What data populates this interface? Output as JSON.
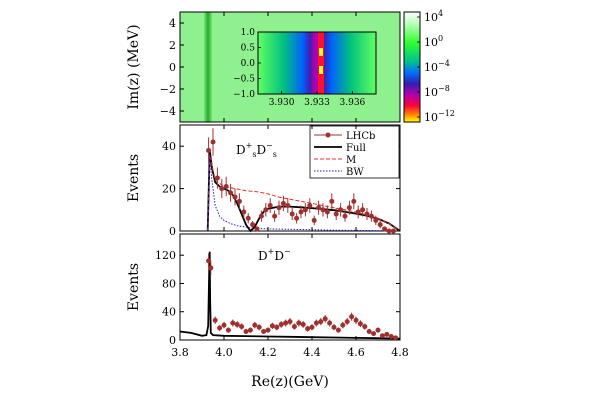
{
  "chart_data": [
    {
      "type": "heatmap",
      "panel": "top",
      "ylabel": "Im(z) (MeV)",
      "ylim": [
        -5,
        5
      ],
      "yticks": [
        "4",
        "2",
        "0",
        "−2",
        "−4"
      ],
      "xlim": [
        3.8,
        4.8
      ],
      "colorbar": {
        "scale": "log",
        "ticks": [
          {
            "base": "10",
            "exp": "4"
          },
          {
            "base": "10",
            "exp": "0"
          },
          {
            "base": "10",
            "exp": "−4"
          },
          {
            "base": "10",
            "exp": "−8"
          },
          {
            "base": "10",
            "exp": "−12"
          }
        ]
      },
      "inset": {
        "xlim": [
          3.928,
          3.938
        ],
        "ylim": [
          -1.0,
          1.0
        ],
        "xticks": [
          "3.930",
          "3.933",
          "3.936"
        ],
        "yticks": [
          "1.0",
          "0.5",
          "0.0",
          "−0.5",
          "−1.0"
        ]
      }
    },
    {
      "type": "line",
      "panel": "middle",
      "annotation": "DsDs",
      "ylabel": "Events",
      "ylim": [
        0,
        50
      ],
      "yticks": [
        "40",
        "20",
        "0"
      ],
      "xlim": [
        3.8,
        4.8
      ],
      "legend": {
        "placement": "top-right",
        "entries": [
          "LHCb",
          "Full",
          "M",
          "BW"
        ]
      },
      "data_series": {
        "name": "LHCb",
        "x": [
          3.93,
          3.95,
          3.97,
          3.99,
          4.01,
          4.03,
          4.05,
          4.07,
          4.09,
          4.11,
          4.13,
          4.15,
          4.17,
          4.19,
          4.21,
          4.23,
          4.25,
          4.27,
          4.29,
          4.31,
          4.33,
          4.35,
          4.37,
          4.39,
          4.41,
          4.43,
          4.45,
          4.47,
          4.49,
          4.51,
          4.53,
          4.55,
          4.57,
          4.59,
          4.61,
          4.63,
          4.65,
          4.67,
          4.69,
          4.71,
          4.73,
          4.75,
          4.77
        ],
        "y": [
          38,
          42,
          25,
          20,
          21,
          18,
          16,
          14,
          9,
          6,
          3,
          1,
          7,
          10,
          12,
          7,
          11,
          13,
          12,
          8,
          6,
          9,
          10,
          12,
          5,
          11,
          10,
          9,
          14,
          8,
          10,
          7,
          11,
          14,
          9,
          10,
          8,
          7,
          5,
          3,
          1,
          0,
          0
        ]
      },
      "curves": [
        {
          "name": "Full",
          "x": [
            3.926,
            3.935,
            3.945,
            3.96,
            3.98,
            4.0,
            4.02,
            4.04,
            4.06,
            4.08,
            4.1,
            4.12,
            4.14,
            4.16,
            4.18,
            4.2,
            4.25,
            4.3,
            4.35,
            4.4,
            4.45,
            4.5,
            4.55,
            4.6,
            4.65,
            4.7,
            4.75,
            4.8
          ],
          "y": [
            0,
            38,
            30,
            23,
            21,
            20,
            19,
            17,
            13,
            8,
            3,
            0,
            2,
            6,
            9,
            10.5,
            11.5,
            11.5,
            11.2,
            10.8,
            10.3,
            9.8,
            9,
            8.2,
            7.2,
            5.8,
            3.6,
            0
          ]
        },
        {
          "name": "M",
          "x": [
            3.926,
            3.935,
            3.96,
            4.0,
            4.05,
            4.1,
            4.15,
            4.2,
            4.25,
            4.3,
            4.35,
            4.4,
            4.45,
            4.5,
            4.55,
            4.6,
            4.65,
            4.7,
            4.75,
            4.8
          ],
          "y": [
            0,
            36,
            24,
            21,
            20,
            19,
            18.5,
            17.5,
            16,
            15,
            14,
            13,
            12,
            11,
            10,
            9,
            7.5,
            6,
            3.5,
            0
          ]
        },
        {
          "name": "BW",
          "x": [
            3.926,
            3.935,
            3.945,
            3.96,
            3.98,
            4.0,
            4.03,
            4.06,
            4.09,
            4.12,
            4.15,
            4.2,
            4.3,
            4.4,
            4.5,
            4.6,
            4.7,
            4.8
          ],
          "y": [
            0,
            36,
            24,
            12,
            7,
            5,
            3.5,
            2.5,
            2,
            1.5,
            1.2,
            1,
            0.8,
            0.6,
            0.4,
            0.3,
            0.2,
            0
          ]
        }
      ]
    },
    {
      "type": "line",
      "panel": "bottom",
      "annotation": "DD",
      "ylabel": "Events",
      "ylim": [
        0,
        150
      ],
      "yticks": [
        "120",
        "80",
        "40",
        "0"
      ],
      "xlim": [
        3.8,
        4.8
      ],
      "xlabel": "Re(z)(GeV)",
      "xticks": [
        "3.8",
        "4.0",
        "4.2",
        "4.4",
        "4.6",
        "4.8"
      ],
      "data_series": {
        "name": "LHCb",
        "x": [
          3.93,
          3.94,
          3.96,
          3.98,
          4.0,
          4.02,
          4.04,
          4.06,
          4.08,
          4.1,
          4.12,
          4.14,
          4.16,
          4.18,
          4.2,
          4.22,
          4.24,
          4.26,
          4.28,
          4.3,
          4.32,
          4.34,
          4.36,
          4.38,
          4.4,
          4.42,
          4.44,
          4.46,
          4.48,
          4.5,
          4.52,
          4.54,
          4.56,
          4.58,
          4.6,
          4.62,
          4.64,
          4.66,
          4.68,
          4.7,
          4.72,
          4.74,
          4.76,
          4.78
        ],
        "y": [
          112,
          102,
          28,
          17,
          21,
          14,
          24,
          22,
          19,
          12,
          14,
          21,
          18,
          12,
          14,
          20,
          18,
          22,
          24,
          26,
          19,
          24,
          22,
          16,
          18,
          24,
          26,
          30,
          24,
          18,
          14,
          21,
          26,
          33,
          28,
          23,
          19,
          12,
          9,
          14,
          6,
          8,
          5,
          3
        ]
      },
      "curves": [
        {
          "name": "Full",
          "x": [
            3.8,
            3.85,
            3.9,
            3.92,
            3.928,
            3.933,
            3.935,
            3.937,
            3.94,
            3.95,
            4.0,
            4.1,
            4.2,
            4.3,
            4.4,
            4.5,
            4.6,
            4.7,
            4.8
          ],
          "y": [
            12,
            10,
            6,
            7,
            20,
            105,
            125,
            60,
            10,
            7,
            6,
            5.5,
            5,
            4.5,
            4,
            3.5,
            3,
            2.5,
            2
          ]
        }
      ]
    }
  ]
}
